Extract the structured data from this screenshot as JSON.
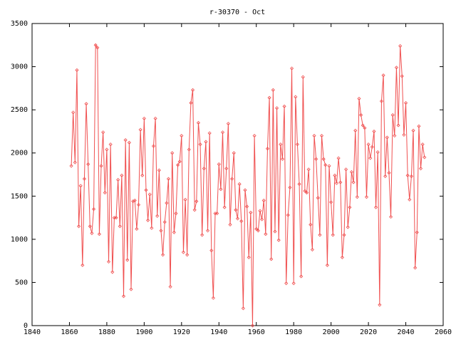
{
  "chart_data": {
    "type": "line",
    "title": "r-30370 - Oct",
    "x": [
      1861,
      1862,
      1863,
      1864,
      1865,
      1866,
      1867,
      1868,
      1869,
      1870,
      1871,
      1872,
      1873,
      1874,
      1875,
      1876,
      1877,
      1878,
      1879,
      1880,
      1881,
      1882,
      1883,
      1884,
      1885,
      1886,
      1887,
      1888,
      1889,
      1890,
      1891,
      1892,
      1893,
      1894,
      1895,
      1896,
      1897,
      1898,
      1899,
      1900,
      1901,
      1902,
      1903,
      1904,
      1905,
      1906,
      1907,
      1908,
      1909,
      1910,
      1911,
      1912,
      1913,
      1914,
      1915,
      1916,
      1917,
      1918,
      1919,
      1920,
      1921,
      1922,
      1923,
      1924,
      1925,
      1926,
      1927,
      1928,
      1929,
      1930,
      1931,
      1932,
      1933,
      1934,
      1935,
      1936,
      1937,
      1938,
      1939,
      1940,
      1941,
      1942,
      1943,
      1944,
      1945,
      1946,
      1947,
      1948,
      1949,
      1950,
      1951,
      1952,
      1953,
      1954,
      1955,
      1956,
      1957,
      1958,
      1959,
      1960,
      1961,
      1962,
      1963,
      1964,
      1965,
      1966,
      1967,
      1968,
      1969,
      1970,
      1971,
      1972,
      1973,
      1974,
      1975,
      1976,
      1977,
      1978,
      1979,
      1980,
      1981,
      1982,
      1983,
      1984,
      1985,
      1986,
      1987,
      1988,
      1989,
      1990,
      1991,
      1992,
      1993,
      1994,
      1995,
      1996,
      1997,
      1998,
      1999,
      2000,
      2001,
      2002,
      2003,
      2004,
      2005,
      2006,
      2007,
      2008,
      2009,
      2010,
      2011,
      2012,
      2013,
      2014,
      2015,
      2016,
      2017,
      2018,
      2019,
      2020,
      2021,
      2022,
      2023,
      2024,
      2025,
      2026,
      2027,
      2028,
      2029,
      2030,
      2031,
      2032,
      2033,
      2034,
      2035,
      2036,
      2037,
      2038,
      2039,
      2040,
      2041,
      2042,
      2043,
      2044,
      2045,
      2046,
      2047,
      2048,
      2049,
      2050
    ],
    "series": [
      {
        "color": "#f05050",
        "values": [
          1850,
          2470,
          1890,
          2960,
          1150,
          1620,
          700,
          1700,
          2570,
          1870,
          1150,
          1070,
          1350,
          3250,
          3220,
          1060,
          1850,
          2240,
          1540,
          2040,
          740,
          2100,
          620,
          1250,
          1250,
          1690,
          1150,
          1740,
          340,
          2150,
          760,
          2120,
          420,
          1440,
          1450,
          1120,
          1400,
          2270,
          1740,
          2400,
          1570,
          1220,
          1520,
          1130,
          2080,
          2400,
          1270,
          1800,
          1100,
          820,
          1200,
          1420,
          1700,
          450,
          2000,
          1080,
          1300,
          1860,
          1900,
          2200,
          850,
          1460,
          820,
          2040,
          2580,
          2730,
          1340,
          1440,
          2350,
          2100,
          1050,
          1820,
          2130,
          1100,
          2230,
          870,
          320,
          1300,
          1300,
          1870,
          1580,
          2240,
          1370,
          1820,
          2340,
          1170,
          1700,
          2000,
          1340,
          1240,
          1640,
          1210,
          200,
          1570,
          1380,
          790,
          1310,
          0,
          2200,
          1120,
          1100,
          1330,
          1230,
          1450,
          1060,
          2050,
          2640,
          770,
          2730,
          1090,
          2520,
          990,
          2100,
          1930,
          2540,
          490,
          1280,
          1600,
          2980,
          490,
          2650,
          2100,
          1640,
          570,
          2880,
          1560,
          1540,
          1810,
          1170,
          880,
          2200,
          1930,
          1480,
          1050,
          2200,
          1930,
          1860,
          700,
          1850,
          1430,
          1050,
          1740,
          1650,
          1940,
          1660,
          790,
          1050,
          1810,
          1140,
          1370,
          1780,
          1660,
          2260,
          1490,
          2630,
          2440,
          2320,
          2290,
          1490,
          2100,
          1940,
          2070,
          2250,
          1370,
          2010,
          240,
          2600,
          2900,
          1730,
          2180,
          1770,
          1260,
          2440,
          2200,
          2990,
          2320,
          3240,
          2890,
          2210,
          2580,
          1740,
          1460,
          1730,
          2260,
          670,
          1080,
          2310,
          1820,
          2100,
          1950
        ]
      }
    ],
    "xlim": [
      1840,
      2060
    ],
    "xticks": [
      1840,
      1860,
      1880,
      1900,
      1920,
      1940,
      1960,
      1980,
      2000,
      2020,
      2040,
      2060
    ],
    "ylim": [
      0,
      3500
    ],
    "yticks": [
      0,
      500,
      1000,
      1500,
      2000,
      2500,
      3000,
      3500
    ]
  }
}
